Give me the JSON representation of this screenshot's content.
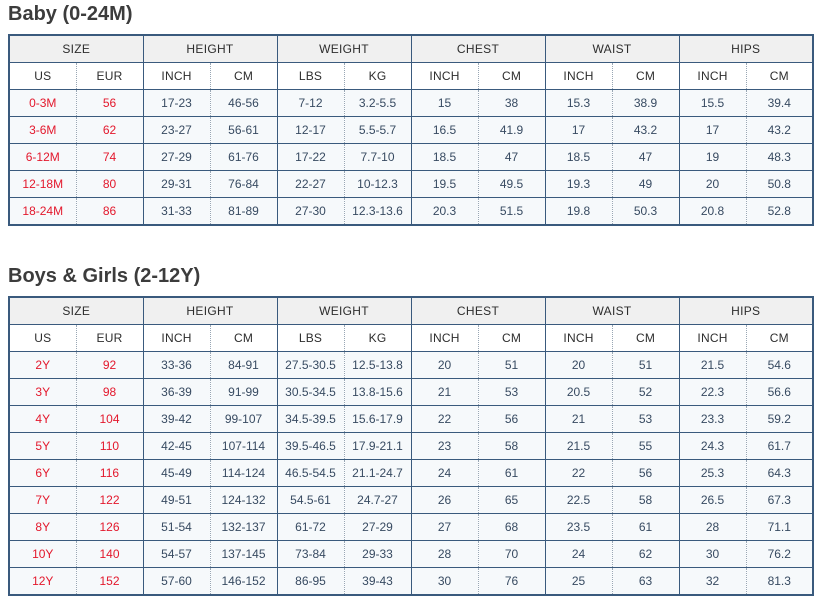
{
  "colors": {
    "accent_red": "#e3182c",
    "table_border": "#3a5a7d",
    "data_text": "#374a61",
    "header_text": "#2d2d2d",
    "group_header_bg": "#f0f0f0",
    "row_bg": "#f6f9fb",
    "dotted_separator": "#98a6b4",
    "title_text": "#3c3c3c"
  },
  "tables": [
    {
      "title": "Baby (0-24M)",
      "group_headers": [
        "SIZE",
        "HEIGHT",
        "WEIGHT",
        "CHEST",
        "WAIST",
        "HIPS"
      ],
      "column_headers": [
        "US",
        "EUR",
        "INCH",
        "CM",
        "LBS",
        "KG",
        "INCH",
        "CM",
        "INCH",
        "CM",
        "INCH",
        "CM"
      ],
      "rows": [
        [
          "0-3M",
          "56",
          "17-23",
          "46-56",
          "7-12",
          "3.2-5.5",
          "15",
          "38",
          "15.3",
          "38.9",
          "15.5",
          "39.4"
        ],
        [
          "3-6M",
          "62",
          "23-27",
          "56-61",
          "12-17",
          "5.5-5.7",
          "16.5",
          "41.9",
          "17",
          "43.2",
          "17",
          "43.2"
        ],
        [
          "6-12M",
          "74",
          "27-29",
          "61-76",
          "17-22",
          "7.7-10",
          "18.5",
          "47",
          "18.5",
          "47",
          "19",
          "48.3"
        ],
        [
          "12-18M",
          "80",
          "29-31",
          "76-84",
          "22-27",
          "10-12.3",
          "19.5",
          "49.5",
          "19.3",
          "49",
          "20",
          "50.8"
        ],
        [
          "18-24M",
          "86",
          "31-33",
          "81-89",
          "27-30",
          "12.3-13.6",
          "20.3",
          "51.5",
          "19.8",
          "50.3",
          "20.8",
          "52.8"
        ]
      ]
    },
    {
      "title": "Boys & Girls (2-12Y)",
      "group_headers": [
        "SIZE",
        "HEIGHT",
        "WEIGHT",
        "CHEST",
        "WAIST",
        "HIPS"
      ],
      "column_headers": [
        "US",
        "EUR",
        "INCH",
        "CM",
        "LBS",
        "KG",
        "INCH",
        "CM",
        "INCH",
        "CM",
        "INCH",
        "CM"
      ],
      "rows": [
        [
          "2Y",
          "92",
          "33-36",
          "84-91",
          "27.5-30.5",
          "12.5-13.8",
          "20",
          "51",
          "20",
          "51",
          "21.5",
          "54.6"
        ],
        [
          "3Y",
          "98",
          "36-39",
          "91-99",
          "30.5-34.5",
          "13.8-15.6",
          "21",
          "53",
          "20.5",
          "52",
          "22.3",
          "56.6"
        ],
        [
          "4Y",
          "104",
          "39-42",
          "99-107",
          "34.5-39.5",
          "15.6-17.9",
          "22",
          "56",
          "21",
          "53",
          "23.3",
          "59.2"
        ],
        [
          "5Y",
          "110",
          "42-45",
          "107-114",
          "39.5-46.5",
          "17.9-21.1",
          "23",
          "58",
          "21.5",
          "55",
          "24.3",
          "61.7"
        ],
        [
          "6Y",
          "116",
          "45-49",
          "114-124",
          "46.5-54.5",
          "21.1-24.7",
          "24",
          "61",
          "22",
          "56",
          "25.3",
          "64.3"
        ],
        [
          "7Y",
          "122",
          "49-51",
          "124-132",
          "54.5-61",
          "24.7-27",
          "26",
          "65",
          "22.5",
          "58",
          "26.5",
          "67.3"
        ],
        [
          "8Y",
          "126",
          "51-54",
          "132-137",
          "61-72",
          "27-29",
          "27",
          "68",
          "23.5",
          "61",
          "28",
          "71.1"
        ],
        [
          "10Y",
          "140",
          "54-57",
          "137-145",
          "73-84",
          "29-33",
          "28",
          "70",
          "24",
          "62",
          "30",
          "76.2"
        ],
        [
          "12Y",
          "152",
          "57-60",
          "146-152",
          "86-95",
          "39-43",
          "30",
          "76",
          "25",
          "63",
          "32",
          "81.3"
        ]
      ]
    }
  ]
}
